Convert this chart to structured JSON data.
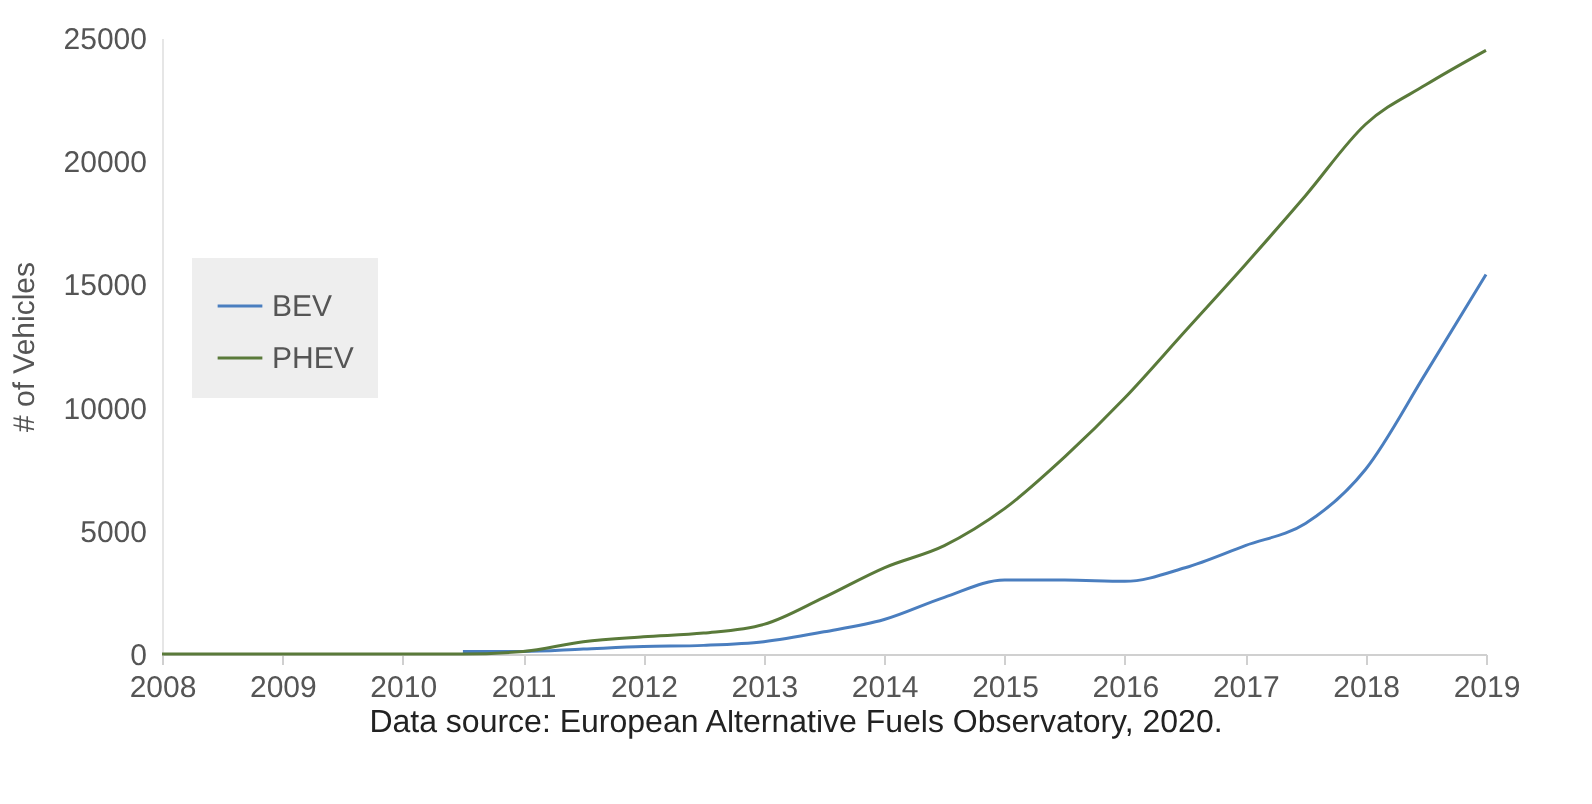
{
  "chart_data": {
    "type": "line",
    "ylabel": "# of Vehicles",
    "annotations": [
      "Data source: European Alternative Fuels Observatory, 2020."
    ],
    "x": [
      2008,
      2008.5,
      2009,
      2009.5,
      2010,
      2010.5,
      2011,
      2011.5,
      2012,
      2012.5,
      2013,
      2013.5,
      2014,
      2014.5,
      2015,
      2015.5,
      2016,
      2016.5,
      2017,
      2017.5,
      2018,
      2018.5,
      2019
    ],
    "series": [
      {
        "name": "BEV",
        "color": "#4a7ebf",
        "values": [
          null,
          null,
          null,
          null,
          null,
          100,
          100,
          200,
          300,
          350,
          500,
          900,
          1400,
          2300,
          3000,
          3000,
          2950,
          3500,
          4400,
          5300,
          7500,
          11400,
          15400
        ]
      },
      {
        "name": "PHEV",
        "color": "#5a7a3a",
        "values": [
          0,
          0,
          0,
          0,
          0,
          0,
          100,
          500,
          700,
          850,
          1200,
          2300,
          3500,
          4400,
          5900,
          8000,
          10400,
          13100,
          15800,
          18600,
          21500,
          23100,
          24500
        ]
      }
    ],
    "xlim": [
      2008,
      2019
    ],
    "xticks": [
      2008,
      2009,
      2010,
      2011,
      2012,
      2013,
      2014,
      2015,
      2016,
      2017,
      2018,
      2019
    ],
    "ylim": [
      0,
      25000
    ],
    "yticks": [
      0,
      5000,
      10000,
      15000,
      20000,
      25000
    ],
    "legend": "left",
    "grid": false,
    "marker": "none",
    "line_style": "solid"
  }
}
